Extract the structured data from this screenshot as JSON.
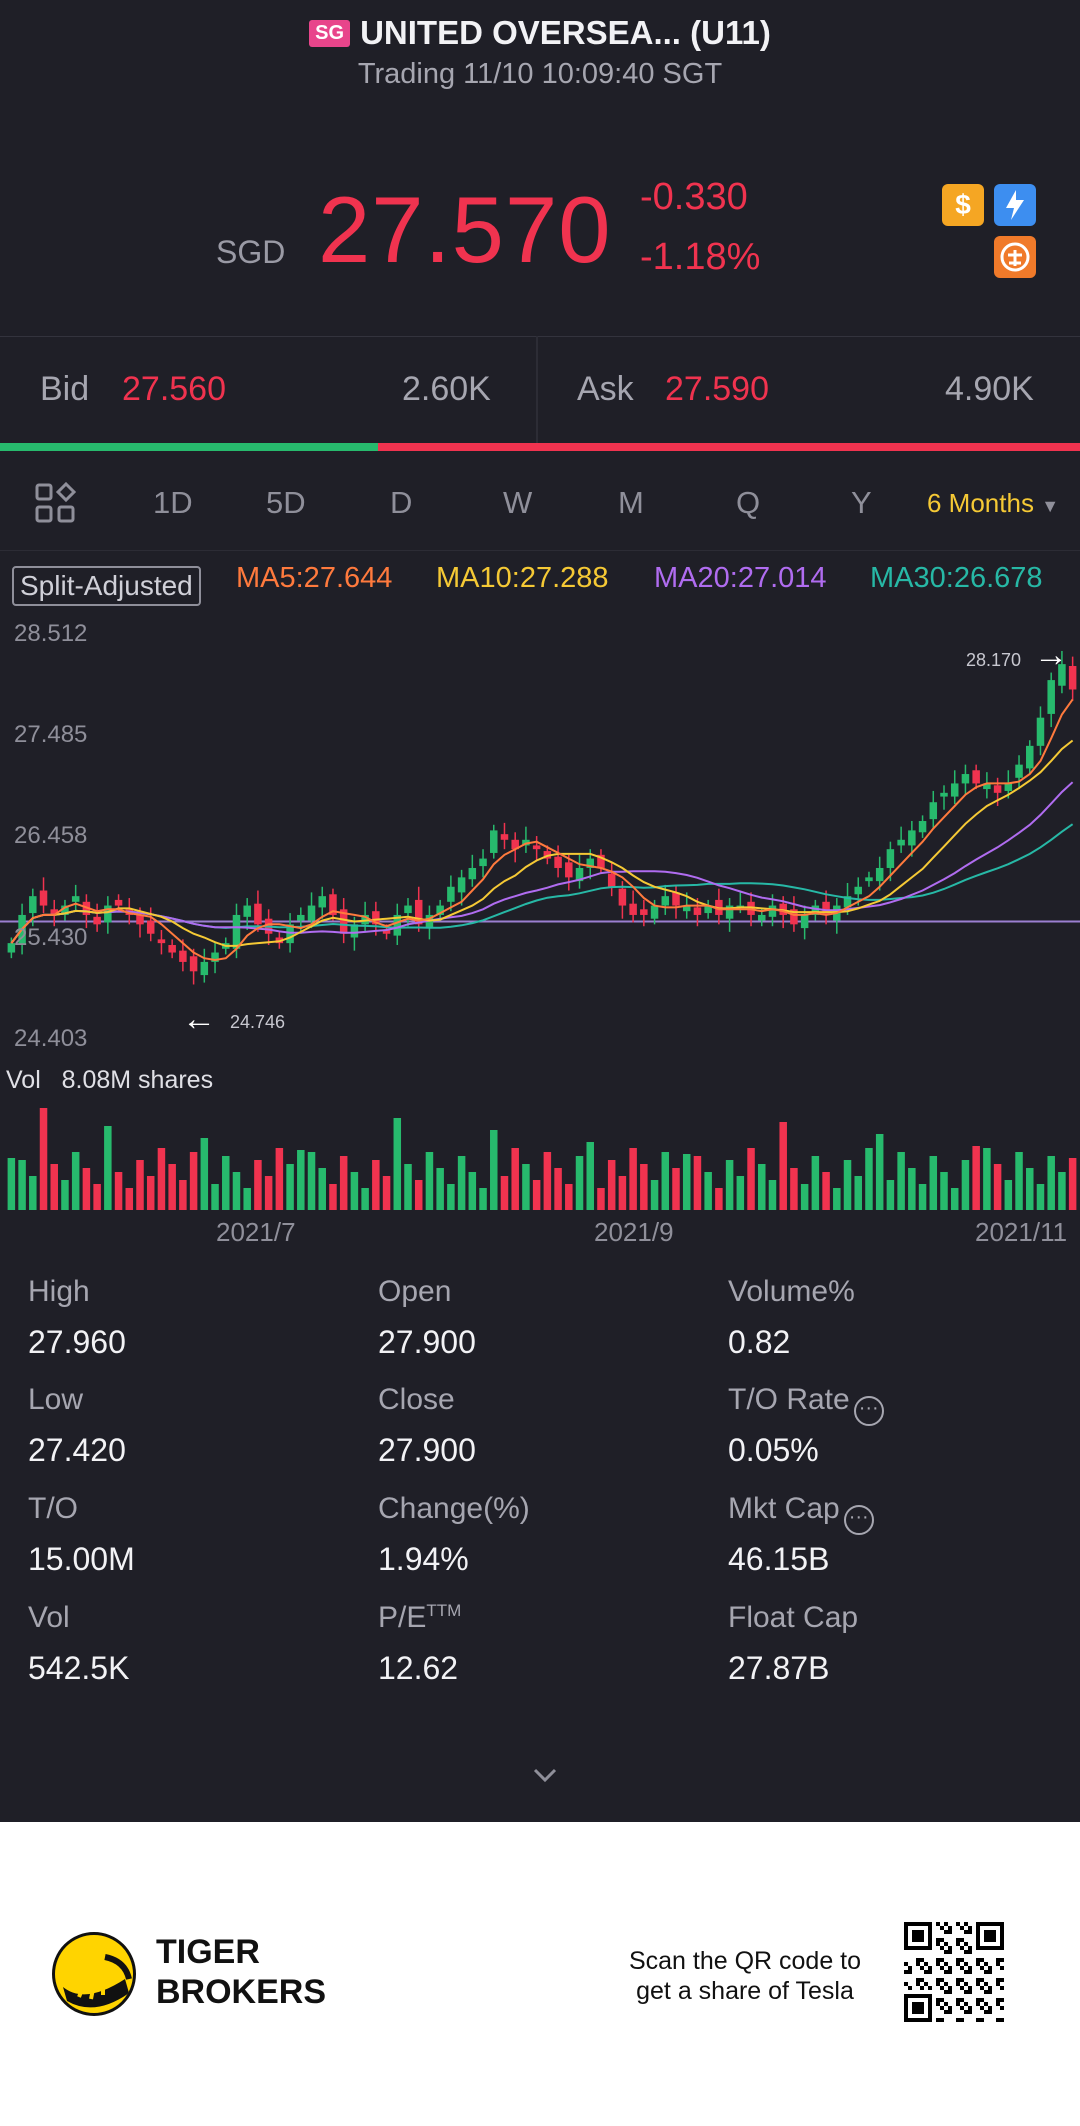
{
  "header": {
    "badge": "SG",
    "title": "UNITED OVERSEA... (U11)",
    "status": "Trading 11/10 10:09:40 SGT"
  },
  "quote": {
    "currency": "SGD",
    "price": "27.570",
    "change": "-0.330",
    "change_pct": "-1.18%",
    "down_color": "#f0334f",
    "up_color": "#27ba6d"
  },
  "bidask": {
    "bid_label": "Bid",
    "bid_price": "27.560",
    "bid_size": "2.60K",
    "ask_label": "Ask",
    "ask_price": "27.590",
    "ask_size": "4.90K",
    "bid_share": 0.35
  },
  "tabs": {
    "items": [
      "1D",
      "5D",
      "D",
      "W",
      "M",
      "Q",
      "Y"
    ],
    "active": "6 Months"
  },
  "indicators": {
    "split_label": "Split-Adjusted",
    "ma5": "MA5:27.644",
    "ma10": "MA10:27.288",
    "ma20": "MA20:27.014",
    "ma30": "MA30:26.678",
    "ma5_color": "#ff7a3d",
    "ma10_color": "#f5c935",
    "ma20_color": "#b06cf0",
    "ma30_color": "#27b8a6"
  },
  "chart_data": {
    "type": "candlestick",
    "y_ticks": [
      "28.512",
      "27.485",
      "26.458",
      "25.430",
      "24.403"
    ],
    "ylim": [
      24.403,
      28.512
    ],
    "x_ticks": [
      "2021/7",
      "2021/9",
      "2021/11"
    ],
    "max_label": "28.170",
    "min_label": "24.746",
    "reference_line": 25.43,
    "closes": [
      25.2,
      25.5,
      25.7,
      25.6,
      25.5,
      25.6,
      25.7,
      25.5,
      25.4,
      25.6,
      25.6,
      25.5,
      25.4,
      25.3,
      25.2,
      25.1,
      25.0,
      24.9,
      25.0,
      25.1,
      25.2,
      25.5,
      25.6,
      25.4,
      25.3,
      25.2,
      25.4,
      25.5,
      25.6,
      25.7,
      25.5,
      25.3,
      25.4,
      25.5,
      25.4,
      25.3,
      25.5,
      25.6,
      25.4,
      25.5,
      25.6,
      25.8,
      25.9,
      26.0,
      26.1,
      26.4,
      26.3,
      26.2,
      26.3,
      26.2,
      26.1,
      26.0,
      25.9,
      26.0,
      26.1,
      26.0,
      25.8,
      25.6,
      25.5,
      25.5,
      25.6,
      25.7,
      25.6,
      25.6,
      25.5,
      25.6,
      25.5,
      25.6,
      25.6,
      25.5,
      25.5,
      25.6,
      25.5,
      25.4,
      25.5,
      25.6,
      25.5,
      25.6,
      25.7,
      25.8,
      25.9,
      26.0,
      26.2,
      26.3,
      26.4,
      26.5,
      26.7,
      26.8,
      26.9,
      27.0,
      26.9,
      26.9,
      26.8,
      26.9,
      27.1,
      27.3,
      27.6,
      28.0,
      28.17,
      27.9
    ],
    "volume_label": "Vol",
    "volume_value": "8.08M shares"
  },
  "stats": {
    "items": [
      {
        "label": "High",
        "value": "27.960"
      },
      {
        "label": "Open",
        "value": "27.900"
      },
      {
        "label": "Volume%",
        "value": "0.82"
      },
      {
        "label": "Low",
        "value": "27.420"
      },
      {
        "label": "Close",
        "value": "27.900"
      },
      {
        "label": "T/O Rate",
        "value": "0.05%"
      },
      {
        "label": "T/O",
        "value": "15.00M"
      },
      {
        "label": "Change(%)",
        "value": "1.94%"
      },
      {
        "label": "Mkt Cap",
        "value": "46.15B"
      },
      {
        "label": "Vol",
        "value": "542.5K"
      },
      {
        "label": "P/E",
        "value": "12.62"
      },
      {
        "label": "Float Cap",
        "value": "27.87B"
      }
    ],
    "pe_sup": "TTM"
  },
  "footer": {
    "brand_line1": "TIGER",
    "brand_line2": "BROKERS",
    "scan_line1": "Scan the QR code to",
    "scan_line2": "get a share of Tesla"
  }
}
